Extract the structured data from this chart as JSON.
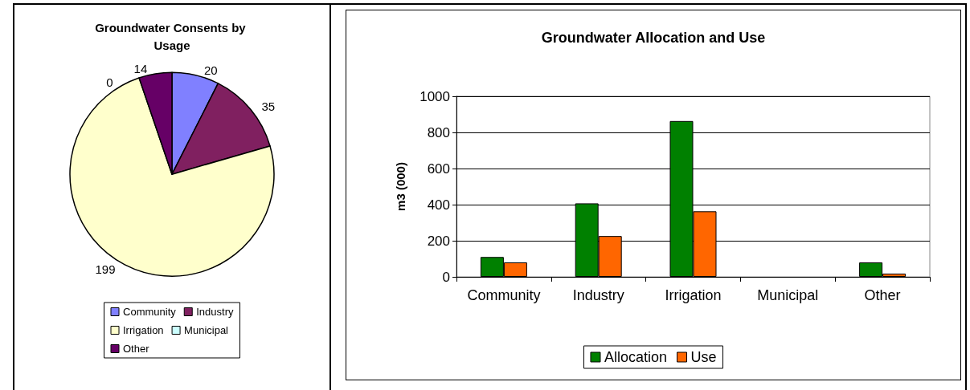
{
  "chart_data": [
    {
      "type": "pie",
      "title": "Groundwater Consents by Usage",
      "categories": [
        "Community",
        "Industry",
        "Irrigation",
        "Municipal",
        "Other"
      ],
      "values": [
        20,
        35,
        199,
        0,
        14
      ],
      "colors": [
        "#8080ff",
        "#802060",
        "#ffffcc",
        "#ccffff",
        "#660066"
      ],
      "value_labels": [
        "20",
        "35",
        "199",
        "0",
        "14"
      ],
      "legend": "bottom"
    },
    {
      "type": "bar",
      "title": "Groundwater Allocation and Use",
      "ylabel": "m3 (000)",
      "categories": [
        "Community",
        "Industry",
        "Irrigation",
        "Municipal",
        "Other"
      ],
      "series": [
        {
          "name": "Allocation",
          "color": "#008000",
          "values": [
            110,
            407,
            863,
            0,
            80
          ]
        },
        {
          "name": "Use",
          "color": "#ff6600",
          "values": [
            80,
            226,
            363,
            0,
            18
          ]
        }
      ],
      "ylim": [
        0,
        1000
      ],
      "yticks": [
        0,
        200,
        400,
        600,
        800,
        1000
      ],
      "grid": "y",
      "legend": "bottom"
    }
  ]
}
